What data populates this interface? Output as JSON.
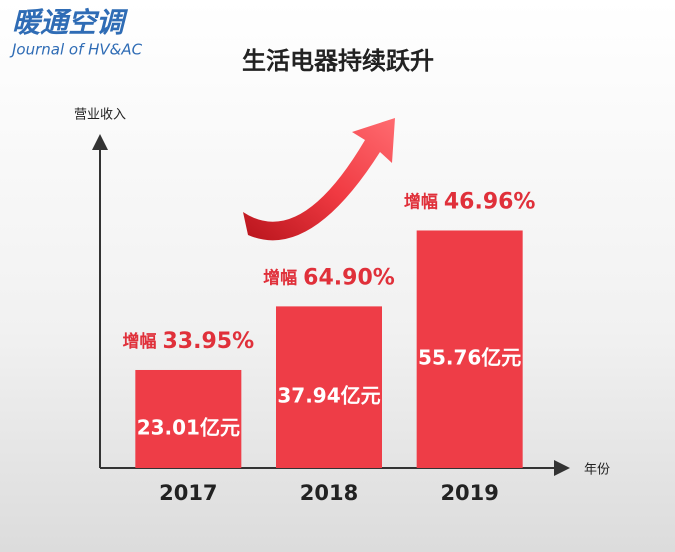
{
  "logo": {
    "title": "暖通空调",
    "subtitle": "Journal of HV&AC"
  },
  "chart_data": {
    "type": "bar",
    "title": "生活电器持续跃升",
    "y_label": "营业收入",
    "x_label": "年份",
    "categories": [
      "2017",
      "2018",
      "2019"
    ],
    "values": [
      23.01,
      37.94,
      55.76
    ],
    "value_labels": [
      "23.01亿元",
      "37.94亿元",
      "55.76亿元"
    ],
    "growth_prefix": "增幅",
    "growth_labels": [
      "33.95%",
      "64.90%",
      "46.96%"
    ],
    "color": "#ee3d47",
    "ylim": [
      0,
      77
    ],
    "grid": false
  }
}
